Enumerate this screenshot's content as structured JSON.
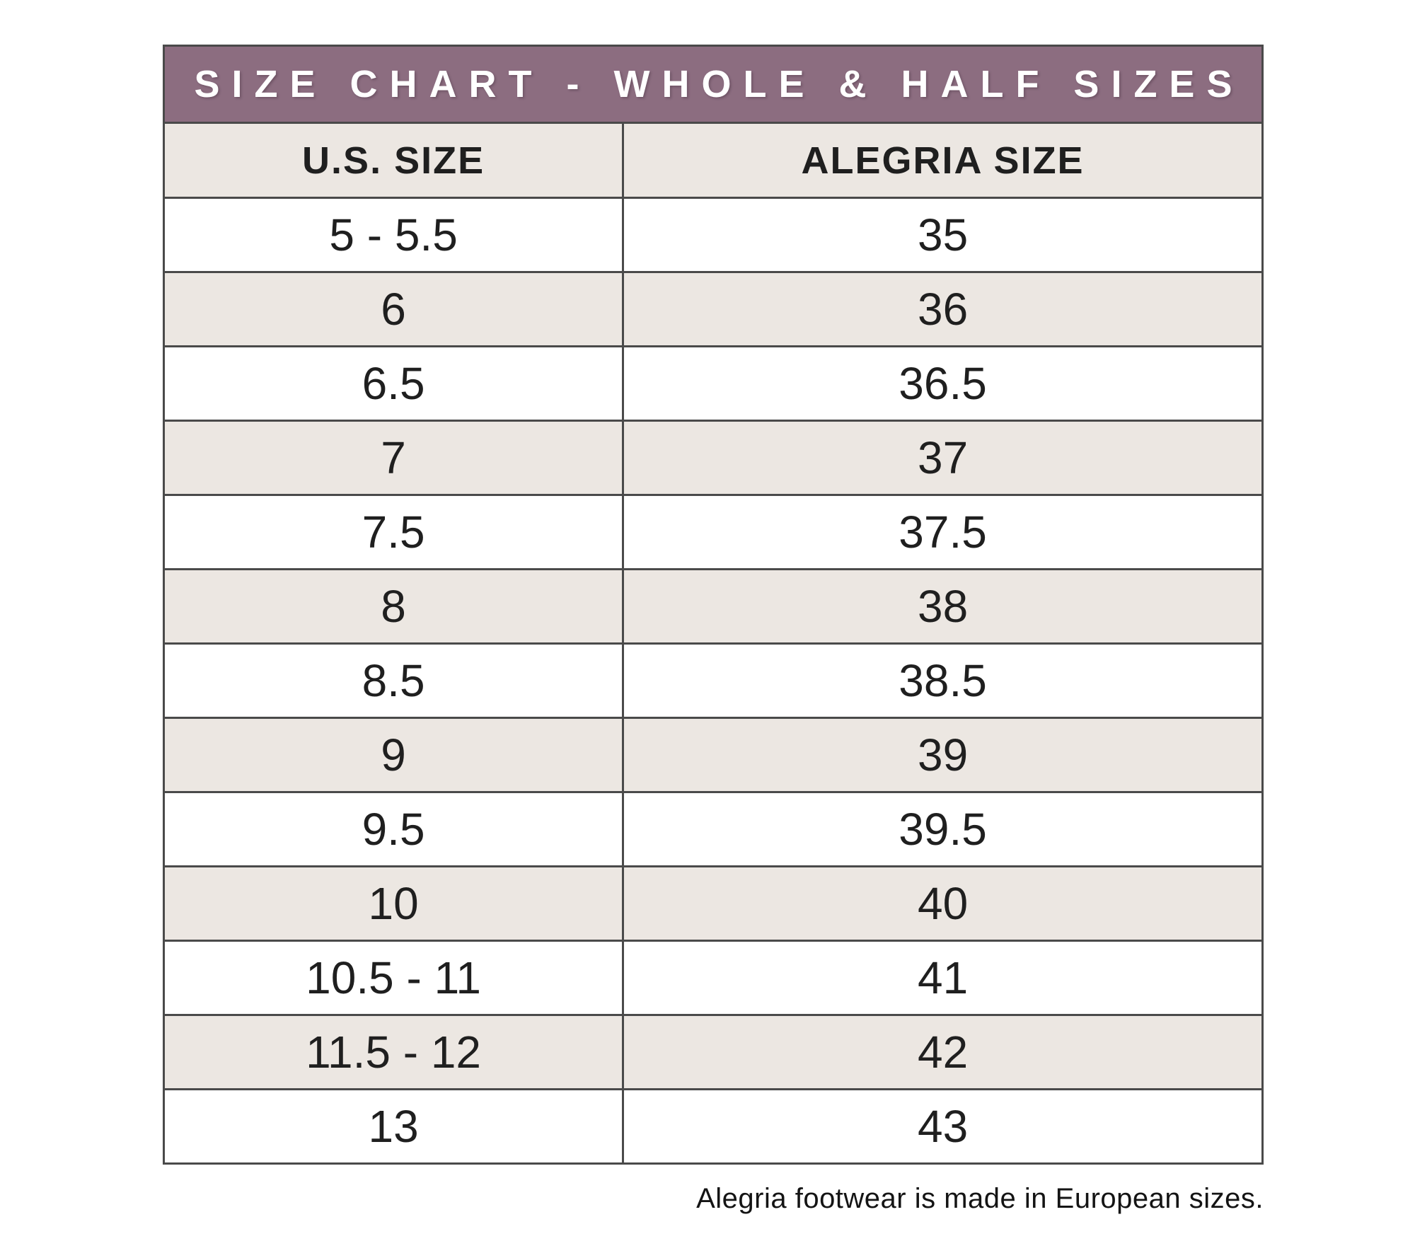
{
  "chart_data": {
    "type": "table",
    "title": "SIZE CHART - WHOLE & HALF SIZES",
    "columns": [
      "U.S. SIZE",
      "ALEGRIA SIZE"
    ],
    "rows": [
      {
        "us_size": "5 - 5.5",
        "alegria_size": "35"
      },
      {
        "us_size": "6",
        "alegria_size": "36"
      },
      {
        "us_size": "6.5",
        "alegria_size": "36.5"
      },
      {
        "us_size": "7",
        "alegria_size": "37"
      },
      {
        "us_size": "7.5",
        "alegria_size": "37.5"
      },
      {
        "us_size": "8",
        "alegria_size": "38"
      },
      {
        "us_size": "8.5",
        "alegria_size": "38.5"
      },
      {
        "us_size": "9",
        "alegria_size": "39"
      },
      {
        "us_size": "9.5",
        "alegria_size": "39.5"
      },
      {
        "us_size": "10",
        "alegria_size": "40"
      },
      {
        "us_size": "10.5 - 11",
        "alegria_size": "41"
      },
      {
        "us_size": "11.5 - 12",
        "alegria_size": "42"
      },
      {
        "us_size": "13",
        "alegria_size": "43"
      }
    ],
    "footnote": "Alegria footwear is made in European sizes.",
    "layout": {
      "alternating_rows": true,
      "first_data_row_bg": "white",
      "grid": "on"
    }
  },
  "colors": {
    "header_bg": "#8c6d80",
    "header_text": "#ffffff",
    "row_bg": "#ffffff",
    "alt_row_bg": "#ece7e2",
    "border": "#4a4a4a",
    "text": "#1f1f1f"
  }
}
